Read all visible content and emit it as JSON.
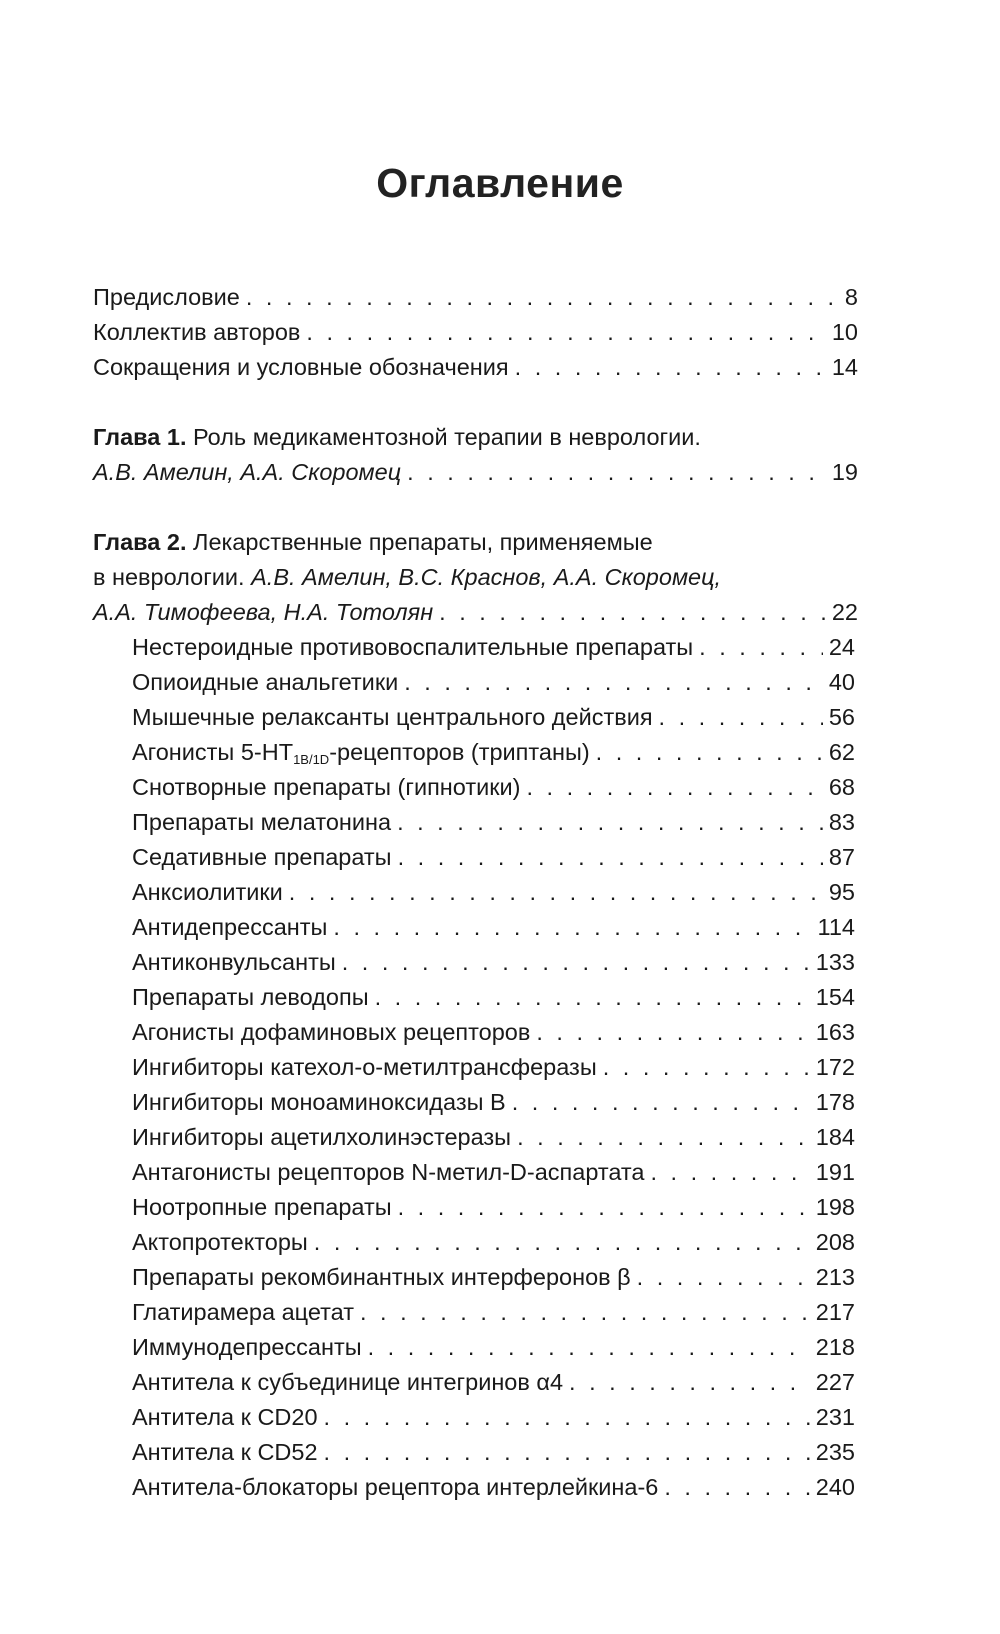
{
  "title": "Оглавление",
  "front": [
    {
      "text": "Предисловие",
      "page": "8"
    },
    {
      "text": "Коллектив авторов",
      "page": "10"
    },
    {
      "text": "Сокращения и условные обозначения",
      "page": "14"
    }
  ],
  "chapter1": {
    "label": "Глава 1.",
    "title": "Роль медикаментозной терапии в неврологии.",
    "authors": "А.В. Амелин, А.А. Скоромец",
    "page": "19"
  },
  "chapter2": {
    "label": "Глава 2.",
    "title_line1": "Лекарственные препараты, применяемые",
    "title_line2": "в неврологии.",
    "authors_line2": "А.В. Амелин, В.С. Краснов, А.А. Скоромец,",
    "authors_line3": "А.А. Тимофеева, Н.А. Тотолян",
    "page": "22",
    "sections": [
      {
        "text": "Нестероидные противовоспалительные препараты",
        "page": "24"
      },
      {
        "text": "Опиоидные анальгетики",
        "page": "40"
      },
      {
        "text": "Мышечные релаксанты центрального действия",
        "page": "56"
      },
      {
        "text": "Агонисты 5-НТ",
        "subscript": "1B/1D",
        "text_after": "-рецепторов (триптаны)",
        "page": "62"
      },
      {
        "text": "Снотворные препараты (гипнотики)",
        "page": "68"
      },
      {
        "text": "Препараты мелатонина",
        "page": "83"
      },
      {
        "text": "Седативные препараты",
        "page": "87"
      },
      {
        "text": "Анксиолитики",
        "page": "95"
      },
      {
        "text": "Антидепрессанты",
        "page": "114"
      },
      {
        "text": "Антиконвульсанты",
        "page": "133"
      },
      {
        "text": "Препараты леводопы",
        "page": "154"
      },
      {
        "text": "Агонисты дофаминовых рецепторов",
        "page": "163"
      },
      {
        "text": "Ингибиторы катехол-о-метилтрансферазы",
        "page": "172"
      },
      {
        "text": "Ингибиторы моноаминоксидазы B",
        "page": "178"
      },
      {
        "text": "Ингибиторы ацетилхолинэстеразы",
        "page": "184"
      },
      {
        "text": "Антагонисты рецепторов N-метил-D-аспартата",
        "page": "191"
      },
      {
        "text": "Ноотропные препараты",
        "page": "198"
      },
      {
        "text": "Актопротекторы",
        "page": "208"
      },
      {
        "text": "Препараты рекомбинантных интерферонов β",
        "page": "213"
      },
      {
        "text": "Глатирамера ацетат",
        "page": "217"
      },
      {
        "text": "Иммунодепрессанты",
        "page": "218"
      },
      {
        "text": "Антитела к субъединице интегринов α4",
        "page": "227"
      },
      {
        "text": "Антитела к CD20",
        "page": "231"
      },
      {
        "text": "Антитела к CD52",
        "page": "235"
      },
      {
        "text": "Антитела-блокаторы рецептора интерлейкина-6",
        "page": "240"
      }
    ]
  }
}
